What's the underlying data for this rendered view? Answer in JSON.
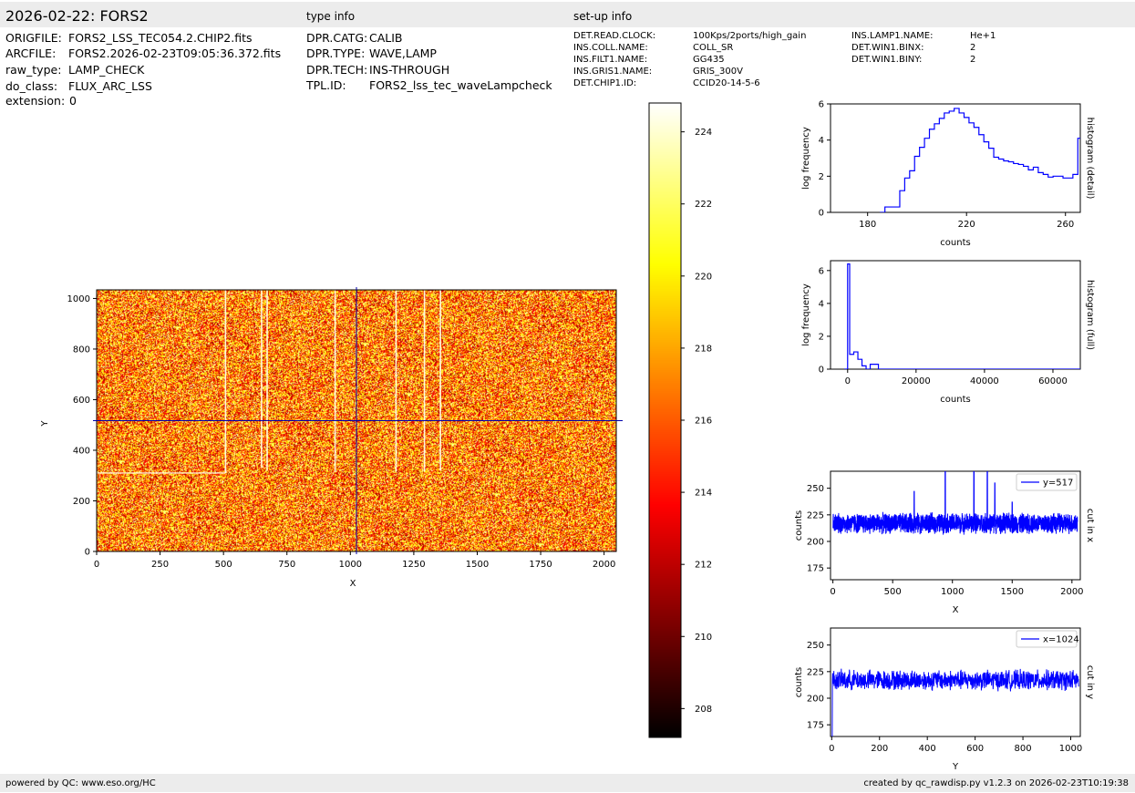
{
  "header": {
    "title": "2026-02-22: FORS2",
    "type_info_label": "type info",
    "setup_info_label": "set-up info"
  },
  "file_info": [
    {
      "key": "ORIGFILE:",
      "value": "FORS2_LSS_TEC054.2.CHIP2.fits"
    },
    {
      "key": "ARCFILE:",
      "value": "FORS2.2026-02-23T09:05:36.372.fits"
    },
    {
      "key": "raw_type:",
      "value": "LAMP_CHECK"
    },
    {
      "key": "do_class:",
      "value": "FLUX_ARC_LSS"
    },
    {
      "key": "extension:",
      "value": "0"
    }
  ],
  "type_info": [
    {
      "key": "DPR.CATG:",
      "value": "CALIB"
    },
    {
      "key": "DPR.TYPE:",
      "value": "WAVE,LAMP"
    },
    {
      "key": "DPR.TECH:",
      "value": "INS-THROUGH"
    },
    {
      "key": "TPL.ID:",
      "value": "FORS2_lss_tec_waveLampcheck"
    }
  ],
  "setup_info_col1": [
    {
      "key": "DET.READ.CLOCK:",
      "value": "100Kps/2ports/high_gain"
    },
    {
      "key": "INS.COLL.NAME:",
      "value": "COLL_SR"
    },
    {
      "key": "INS.FILT1.NAME:",
      "value": "GG435"
    },
    {
      "key": "INS.GRIS1.NAME:",
      "value": "GRIS_300V"
    },
    {
      "key": "DET.CHIP1.ID:",
      "value": "CCID20-14-5-6"
    }
  ],
  "setup_info_col2": [
    {
      "key": "INS.LAMP1.NAME:",
      "value": "He+1"
    },
    {
      "key": "DET.WIN1.BINX:",
      "value": "2"
    },
    {
      "key": "DET.WIN1.BINY:",
      "value": "2"
    }
  ],
  "footer": {
    "left": "powered by QC: www.eso.org/HC",
    "right": "created by qc_rawdisp.py v1.2.3 on 2026-02-23T10:19:38"
  },
  "colors": {
    "band": "#ececec",
    "line": "#0000ff",
    "cursor": "#0000aa"
  },
  "chart_data": [
    {
      "type": "heatmap",
      "colormap": "hot",
      "xlabel": "X",
      "ylabel": "Y",
      "xlim": [
        0,
        2048
      ],
      "ylim": [
        0,
        1034
      ],
      "xticks": [
        "0",
        "250",
        "500",
        "750",
        "1000",
        "1250",
        "1500",
        "1750",
        "2000"
      ],
      "yticks": [
        "0",
        "200",
        "400",
        "600",
        "800",
        "1000"
      ],
      "cursor": {
        "x": 1024,
        "y": 517
      },
      "arc_lines": [
        {
          "x": 508,
          "y0": 310,
          "y1": 1034
        },
        {
          "x": 650,
          "y0": 330,
          "y1": 1034
        },
        {
          "x": 672,
          "y0": 320,
          "y1": 1034
        },
        {
          "x": 940,
          "y0": 315,
          "y1": 1034
        },
        {
          "x": 1180,
          "y0": 315,
          "y1": 1034
        },
        {
          "x": 1292,
          "y0": 315,
          "y1": 1034
        },
        {
          "x": 1355,
          "y0": 320,
          "y1": 1034
        }
      ],
      "horizontal_feature": {
        "y": 310,
        "x0": 0,
        "x1": 508
      }
    },
    {
      "type": "colorbar",
      "range": [
        207.2,
        224.8
      ],
      "ticks": [
        "208",
        "210",
        "212",
        "214",
        "216",
        "218",
        "220",
        "222",
        "224"
      ]
    },
    {
      "type": "line",
      "name": "histogram-detail",
      "xlabel": "counts",
      "ylabel": "log frequency",
      "side_label": "histogram (detail)",
      "xlim": [
        165,
        266
      ],
      "ylim": [
        0,
        6
      ],
      "xticks": [
        "180",
        "220",
        "260"
      ],
      "yticks": [
        "0",
        "2",
        "4",
        "6"
      ],
      "x": [
        185,
        187,
        189,
        191,
        193,
        195,
        197,
        199,
        201,
        203,
        205,
        207,
        209,
        211,
        213,
        215,
        217,
        219,
        221,
        223,
        225,
        227,
        229,
        231,
        233,
        235,
        237,
        239,
        241,
        243,
        245,
        247,
        249,
        251,
        253,
        255,
        257,
        259,
        261,
        263,
        265
      ],
      "y": [
        0,
        0.3,
        0.3,
        0.3,
        1.2,
        1.9,
        2.3,
        3.1,
        3.6,
        4.1,
        4.6,
        4.9,
        5.2,
        5.5,
        5.6,
        5.75,
        5.5,
        5.25,
        4.95,
        4.7,
        4.3,
        3.9,
        3.55,
        3.05,
        2.95,
        2.85,
        2.8,
        2.7,
        2.65,
        2.55,
        2.35,
        2.5,
        2.2,
        2.1,
        1.95,
        2.0,
        2.0,
        1.9,
        1.9,
        2.1,
        4.1
      ]
    },
    {
      "type": "line",
      "name": "histogram-full",
      "xlabel": "counts",
      "ylabel": "log frequency",
      "side_label": "histogram (full)",
      "xlim": [
        -5000,
        68000
      ],
      "ylim": [
        0,
        6.6
      ],
      "xticks": [
        "0",
        "20000",
        "40000",
        "60000"
      ],
      "yticks": [
        "0",
        "2",
        "4",
        "6"
      ],
      "x": [
        -1000,
        -400,
        0,
        600,
        1800,
        3000,
        4200,
        5400,
        6600,
        7800,
        9000,
        10200,
        66000
      ],
      "y": [
        0,
        0,
        6.4,
        0.9,
        1.05,
        0.6,
        0.2,
        0,
        0.3,
        0.3,
        0,
        0,
        0
      ]
    },
    {
      "type": "line",
      "name": "cut-in-x",
      "legend": "y=517",
      "xlabel": "X",
      "ylabel": "counts",
      "side_label": "cut in x",
      "xlim": [
        -20,
        2070
      ],
      "ylim": [
        164,
        266
      ],
      "xticks": [
        "0",
        "500",
        "1000",
        "1500",
        "2000"
      ],
      "yticks": [
        "175",
        "200",
        "225",
        "250"
      ],
      "baseline": 217,
      "noise": 9,
      "spikes": [
        [
          680,
          247
        ],
        [
          940,
          300
        ],
        [
          1180,
          300
        ],
        [
          1292,
          300
        ],
        [
          1355,
          255
        ],
        [
          1500,
          237
        ]
      ]
    },
    {
      "type": "line",
      "name": "cut-in-y",
      "legend": "x=1024",
      "xlabel": "Y",
      "ylabel": "counts",
      "side_label": "cut in y",
      "xlim": [
        -5,
        1040
      ],
      "ylim": [
        164,
        266
      ],
      "xticks": [
        "0",
        "200",
        "400",
        "600",
        "800",
        "1000"
      ],
      "yticks": [
        "175",
        "200",
        "225",
        "250"
      ],
      "baseline": 217,
      "noise": 9,
      "start_drop": 150
    }
  ]
}
